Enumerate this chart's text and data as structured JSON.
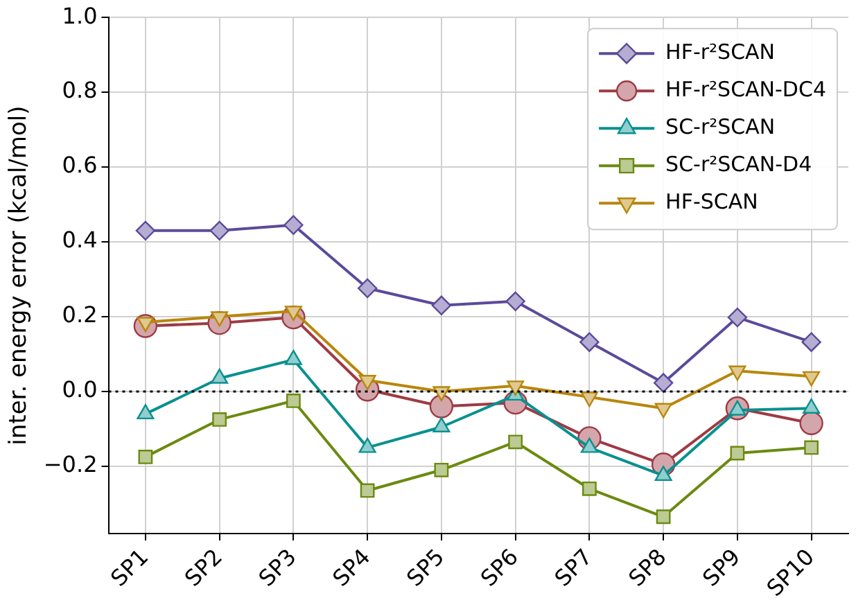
{
  "chart_data": {
    "type": "line",
    "ylabel": "inter. energy error (kcal/mol)",
    "categories": [
      "SP1",
      "SP2",
      "SP3",
      "SP4",
      "SP5",
      "SP6",
      "SP7",
      "SP8",
      "SP9",
      "SP10"
    ],
    "series": [
      {
        "name": "HF-r²SCAN",
        "color": "#5b4a9a",
        "marker": "diamond",
        "values": [
          0.43,
          0.43,
          0.445,
          0.276,
          0.23,
          0.241,
          0.132,
          0.023,
          0.198,
          0.132
        ]
      },
      {
        "name": "HF-r²SCAN-DC4",
        "color": "#9e3a44",
        "marker": "circle",
        "values": [
          0.175,
          0.183,
          0.198,
          0.005,
          -0.04,
          -0.03,
          -0.125,
          -0.195,
          -0.045,
          -0.085
        ]
      },
      {
        "name": "SC-r²SCAN",
        "color": "#0a9090",
        "marker": "triangle",
        "values": [
          -0.06,
          0.035,
          0.085,
          -0.15,
          -0.095,
          -0.01,
          -0.15,
          -0.225,
          -0.05,
          -0.045
        ]
      },
      {
        "name": "SC-r²SCAN-D4",
        "color": "#6b8a10",
        "marker": "square",
        "values": [
          -0.175,
          -0.075,
          -0.025,
          -0.265,
          -0.21,
          -0.135,
          -0.26,
          -0.335,
          -0.165,
          -0.15
        ]
      },
      {
        "name": "HF-SCAN",
        "color": "#b8860b",
        "marker": "triangle-down",
        "values": [
          0.185,
          0.2,
          0.215,
          0.03,
          0.0,
          0.015,
          -0.015,
          -0.045,
          0.055,
          0.04
        ]
      }
    ],
    "ylim": [
      -0.38,
      1.0
    ],
    "yticks": [
      {
        "value": -0.2,
        "label": "−0.2"
      },
      {
        "value": 0,
        "label": "0.0"
      },
      {
        "value": 0.2,
        "label": "0.2"
      },
      {
        "value": 0.4,
        "label": "0.4"
      },
      {
        "value": 0.6,
        "label": "0.6"
      },
      {
        "value": 0.8,
        "label": "0.8"
      },
      {
        "value": 1.0,
        "label": "1.0"
      }
    ],
    "ref_lines": [
      {
        "axis": "y",
        "value": 0,
        "color": "#000000",
        "line_style": "dotted"
      }
    ],
    "grid": true,
    "legend": "top right",
    "line_style": "solid"
  }
}
